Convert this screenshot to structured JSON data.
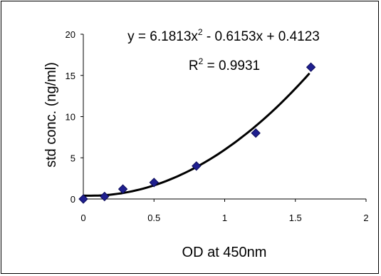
{
  "chart_data": {
    "type": "scatter",
    "title": "",
    "xlabel": "OD at 450nm",
    "ylabel": "std conc.  (ng/ml)",
    "xlim": [
      0,
      2
    ],
    "ylim": [
      0,
      20
    ],
    "x_ticks": [
      "0",
      "0.5",
      "1",
      "1.5",
      "2"
    ],
    "y_ticks": [
      "0",
      "5",
      "10",
      "15",
      "20"
    ],
    "grid": false,
    "legend": "none",
    "series": [
      {
        "x": [
          0.0,
          0.15,
          0.28,
          0.5,
          0.8,
          1.22,
          1.61
        ],
        "y": [
          0,
          0.3,
          1.2,
          2.0,
          4.0,
          8.0,
          16.0
        ],
        "marker": "diamond",
        "color": "#1f1f8f"
      }
    ],
    "trendline": {
      "type": "polynomial",
      "order": 2,
      "coefficients": [
        6.1813,
        -0.6153,
        0.4123
      ],
      "x_range": [
        0,
        1.6
      ],
      "color": "#000000"
    },
    "annotations": {
      "equation_prefix": "y = 6.1813x",
      "equation_exp": "2",
      "equation_suffix": " -  0.6153x + 0.4123",
      "r2_prefix": "R",
      "r2_exp": "2",
      "r2_suffix": " = 0.9931"
    }
  }
}
